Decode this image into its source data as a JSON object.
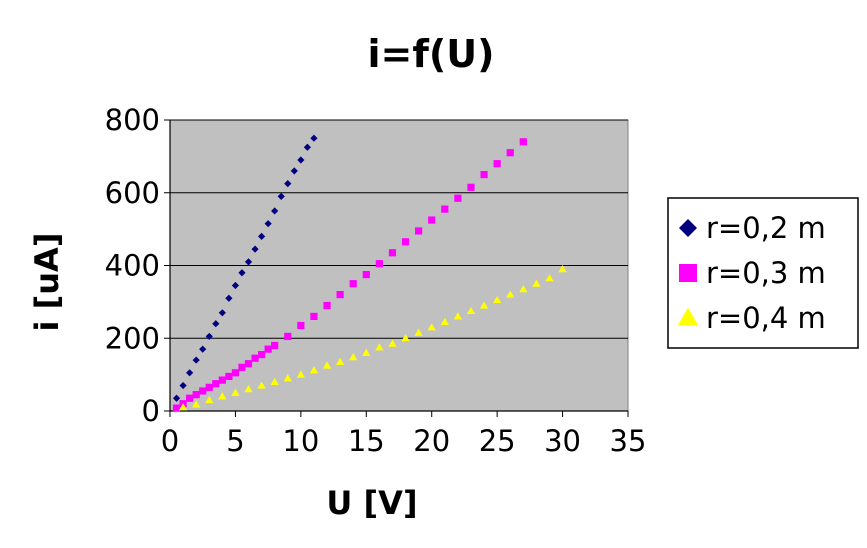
{
  "chart_data": {
    "type": "scatter",
    "title": "i=f(U)",
    "xlabel": "U [V]",
    "ylabel": "i [uA]",
    "xlim": [
      0,
      35
    ],
    "ylim": [
      0,
      800
    ],
    "xticks": [
      "0",
      "5",
      "10",
      "15",
      "20",
      "25",
      "30",
      "35"
    ],
    "yticks": [
      "0",
      "200",
      "400",
      "600",
      "800"
    ],
    "grid": "horizontal",
    "legend_position": "right",
    "plot_background": "#c0c0c0",
    "series": [
      {
        "name": "r=0,2 m",
        "marker": "diamond",
        "color": "#000080",
        "x": [
          0.5,
          1,
          1.5,
          2,
          2.5,
          3,
          3.5,
          4,
          4.5,
          5,
          5.5,
          6,
          6.5,
          7,
          7.5,
          8,
          8.5,
          9,
          9.5,
          10,
          10.5,
          11
        ],
        "y": [
          35,
          70,
          105,
          140,
          170,
          205,
          240,
          270,
          310,
          345,
          380,
          410,
          445,
          480,
          515,
          550,
          590,
          625,
          660,
          690,
          725,
          750
        ]
      },
      {
        "name": "r=0,3 m",
        "marker": "square",
        "color": "#ff00ff",
        "x": [
          0.5,
          1,
          1.5,
          2,
          2.5,
          3,
          3.5,
          4,
          4.5,
          5,
          5.5,
          6,
          6.5,
          7,
          7.5,
          8,
          9,
          10,
          11,
          12,
          13,
          14,
          15,
          16,
          17,
          18,
          19,
          20,
          21,
          22,
          23,
          24,
          25,
          26,
          27
        ],
        "y": [
          8,
          20,
          35,
          45,
          55,
          65,
          75,
          85,
          95,
          105,
          120,
          130,
          145,
          155,
          170,
          180,
          205,
          235,
          260,
          290,
          320,
          350,
          375,
          405,
          435,
          465,
          495,
          525,
          555,
          585,
          615,
          650,
          680,
          710,
          740
        ]
      },
      {
        "name": "r=0,4 m",
        "marker": "triangle",
        "color": "#ffff00",
        "x": [
          1,
          2,
          3,
          4,
          5,
          6,
          7,
          8,
          9,
          10,
          11,
          12,
          13,
          14,
          15,
          16,
          17,
          18,
          19,
          20,
          21,
          22,
          23,
          24,
          25,
          26,
          27,
          28,
          29,
          30
        ],
        "y": [
          10,
          18,
          30,
          40,
          50,
          60,
          70,
          80,
          90,
          100,
          112,
          125,
          135,
          148,
          160,
          175,
          185,
          200,
          215,
          230,
          245,
          260,
          275,
          290,
          305,
          320,
          335,
          350,
          365,
          390
        ]
      }
    ]
  }
}
